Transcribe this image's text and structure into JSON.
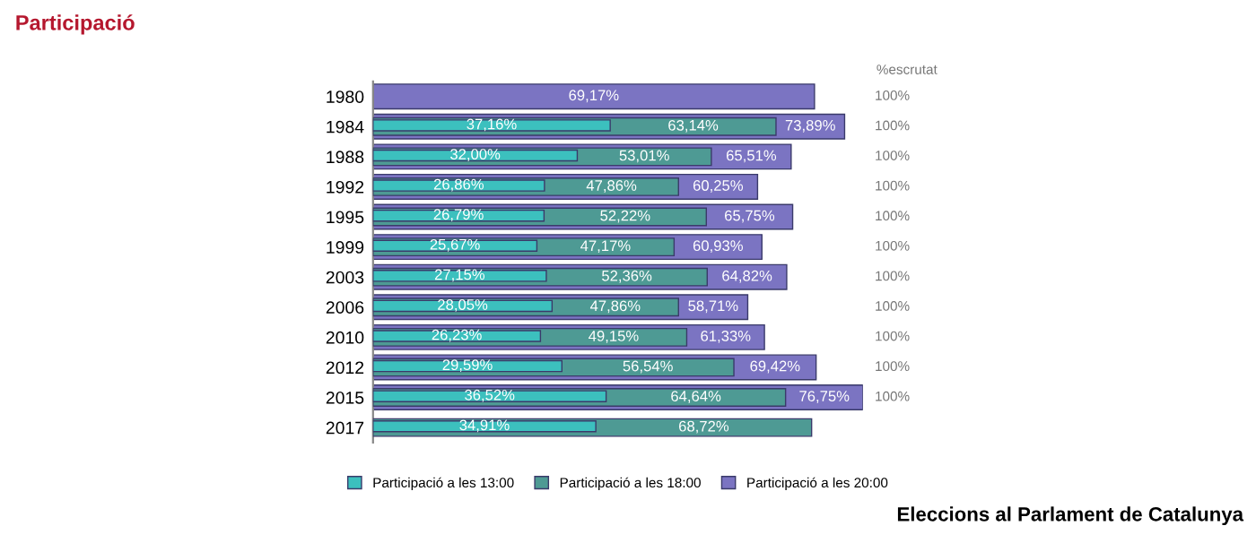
{
  "chart_data": {
    "type": "bar",
    "orientation": "horizontal",
    "title": "Participació",
    "categories": [
      "1980",
      "1984",
      "1988",
      "1992",
      "1995",
      "1999",
      "2003",
      "2006",
      "2010",
      "2012",
      "2015",
      "2017"
    ],
    "series": [
      {
        "name": "Participació a les 20:00",
        "color": "#7b74c2",
        "values": [
          69.17,
          73.89,
          65.51,
          60.25,
          65.75,
          60.93,
          64.82,
          58.71,
          61.33,
          69.42,
          76.75,
          null
        ],
        "value_labels": [
          "69,17%",
          "73,89%",
          "65,51%",
          "60,25%",
          "65,75%",
          "60,93%",
          "64,82%",
          "58,71%",
          "61,33%",
          "69,42%",
          "76,75%",
          null
        ]
      },
      {
        "name": "Participació a les 18:00",
        "color": "#4e9a94",
        "values": [
          null,
          63.14,
          53.01,
          47.86,
          52.22,
          47.17,
          52.36,
          47.86,
          49.15,
          56.54,
          64.64,
          68.72
        ],
        "value_labels": [
          null,
          "63,14%",
          "53,01%",
          "47,86%",
          "52,22%",
          "47,17%",
          "52,36%",
          "47,86%",
          "49,15%",
          "56,54%",
          "64,64%",
          "68,72%"
        ]
      },
      {
        "name": "Participació a les 13:00",
        "color": "#3cc0be",
        "values": [
          null,
          37.16,
          32.0,
          26.86,
          26.79,
          25.67,
          27.15,
          28.05,
          26.23,
          29.59,
          36.52,
          34.91
        ],
        "value_labels": [
          null,
          "37,16%",
          "32,00%",
          "26,86%",
          "26,79%",
          "25,67%",
          "27,15%",
          "28,05%",
          "26,23%",
          "29,59%",
          "36,52%",
          "34,91%"
        ]
      }
    ],
    "legend": "bottom",
    "annotations": [
      "%escrutat",
      "100%",
      "100%",
      "100%",
      "100%",
      "100%",
      "100%",
      "100%",
      "100%",
      "100%",
      "100%",
      "100%",
      "Eleccions al Parlament de Catalunya"
    ]
  }
}
